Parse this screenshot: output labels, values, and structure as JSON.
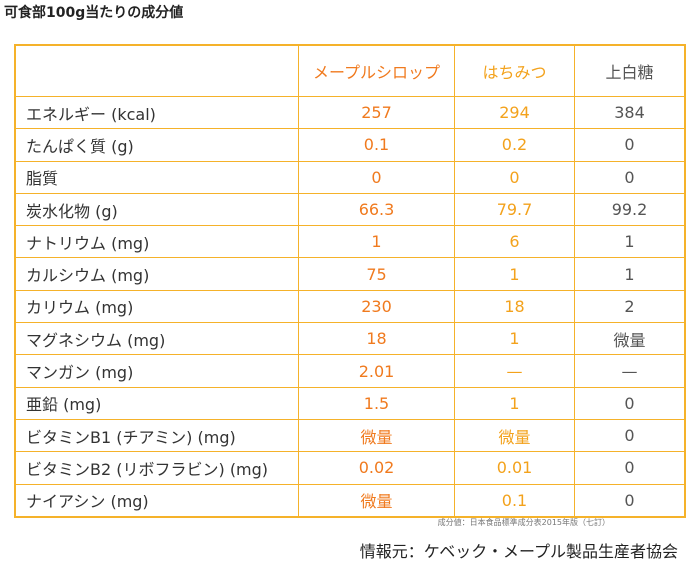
{
  "title": "可食部100g当たりの成分値",
  "table": {
    "columns": [
      "メープルシロップ",
      "はちみつ",
      "上白糖"
    ],
    "rows": [
      {
        "label": "エネルギー (kcal)",
        "values": [
          "257",
          "294",
          "384"
        ]
      },
      {
        "label": "たんぱく質 (g)",
        "values": [
          "0.1",
          "0.2",
          "0"
        ]
      },
      {
        "label": "脂質",
        "values": [
          "0",
          "0",
          "0"
        ]
      },
      {
        "label": "炭水化物 (g)",
        "values": [
          "66.3",
          "79.7",
          "99.2"
        ]
      },
      {
        "label": "ナトリウム (mg)",
        "values": [
          "1",
          "6",
          "1"
        ]
      },
      {
        "label": "カルシウム (mg)",
        "values": [
          "75",
          "1",
          "1"
        ]
      },
      {
        "label": "カリウム (mg)",
        "values": [
          "230",
          "18",
          "2"
        ]
      },
      {
        "label": "マグネシウム (mg)",
        "values": [
          "18",
          "1",
          "微量"
        ]
      },
      {
        "label": "マンガン (mg)",
        "values": [
          "2.01",
          "—",
          "—"
        ]
      },
      {
        "label": "亜鉛 (mg)",
        "values": [
          "1.5",
          "1",
          "0"
        ]
      },
      {
        "label": "ビタミンB1 (チアミン) (mg)",
        "values": [
          "微量",
          "微量",
          "0"
        ]
      },
      {
        "label": "ビタミンB2 (リボフラビン) (mg)",
        "values": [
          "0.02",
          "0.01",
          "0"
        ]
      },
      {
        "label": "ナイアシン (mg)",
        "values": [
          "微量",
          "0.1",
          "0"
        ]
      }
    ]
  },
  "note": "成分値：日本食品標準成分表2015年版（七訂）",
  "source": "情報元：ケベック・メープル製品生産者協会"
}
